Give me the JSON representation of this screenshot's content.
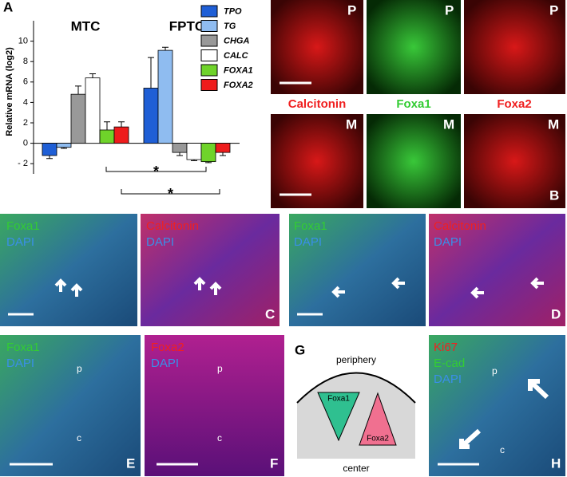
{
  "chart_data": {
    "type": "bar",
    "panel_label": "A",
    "y_label": "Relative mRNA (log2)",
    "categories": [
      "MTC",
      "FPTC"
    ],
    "series": [
      {
        "name": "TPO",
        "color": "#1f5fd6",
        "values": [
          -1.2,
          5.4
        ],
        "errors": [
          0.3,
          3.0
        ]
      },
      {
        "name": "TG",
        "color": "#8fbcf0",
        "values": [
          -0.4,
          9.1
        ],
        "errors": [
          0.1,
          0.3
        ]
      },
      {
        "name": "CHGA",
        "color": "#999999",
        "values": [
          4.8,
          -0.9
        ],
        "errors": [
          0.8,
          0.3
        ]
      },
      {
        "name": "CALC",
        "color": "#ffffff",
        "values": [
          6.4,
          -1.6
        ],
        "errors": [
          0.4,
          0.1
        ]
      },
      {
        "name": "FOXA1",
        "color": "#6fd32a",
        "values": [
          1.3,
          -1.8
        ],
        "errors": [
          0.8,
          0.1
        ]
      },
      {
        "name": "FOXA2",
        "color": "#ee1c1c",
        "values": [
          1.6,
          -0.9
        ],
        "errors": [
          0.5,
          0.3
        ]
      }
    ],
    "ylim": [
      -3,
      12
    ],
    "yticks": [
      {
        "value": -2,
        "label": "- 2"
      },
      0,
      2,
      4,
      6,
      8,
      10
    ],
    "annotations": [
      "*",
      "*"
    ]
  },
  "micrographs": {
    "B": {
      "row1": [
        "P",
        "P",
        "P"
      ],
      "stains": [
        "Calcitonin",
        "Foxa1",
        "Foxa2"
      ],
      "row2": [
        "M",
        "M",
        "M"
      ],
      "letter": "B"
    },
    "C": {
      "left": [
        "Foxa1",
        "DAPI"
      ],
      "right": [
        "Calcitonin",
        "DAPI"
      ],
      "letter": "C"
    },
    "D": {
      "left": [
        "Foxa1",
        "DAPI"
      ],
      "right": [
        "Calcitonin",
        "DAPI"
      ],
      "letter": "D"
    },
    "E": {
      "stains": [
        "Foxa1",
        "DAPI"
      ],
      "regions": [
        "p",
        "c"
      ],
      "letter": "E"
    },
    "F": {
      "stains": [
        "Foxa2",
        "DAPI"
      ],
      "regions": [
        "p",
        "c"
      ],
      "letter": "F"
    },
    "G": {
      "top": "periphery",
      "a": "Foxa1",
      "b": "Foxa2",
      "bottom": "center",
      "letter": "G"
    },
    "H": {
      "stains": [
        "Ki67",
        "E-cad",
        "DAPI"
      ],
      "regions": [
        "p",
        "c"
      ],
      "letter": "H"
    }
  }
}
